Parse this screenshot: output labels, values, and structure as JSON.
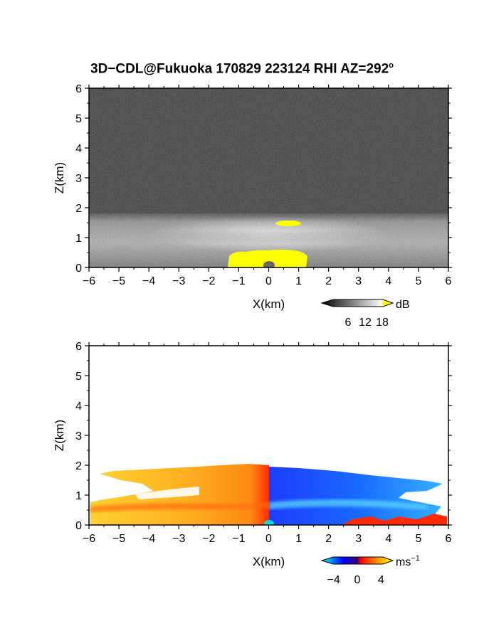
{
  "title": {
    "main": "3D−CDL@Fukuoka 170829 223124 RHI AZ=292",
    "superscript": "o"
  },
  "chart_data": [
    {
      "type": "heatmap",
      "panel": "reflectivity",
      "title": "3D−CDL@Fukuoka 170829 223124 RHI AZ=292°",
      "xlabel": "X(km)",
      "ylabel": "Z(km)",
      "xlim": [
        -6,
        6
      ],
      "ylim": [
        0,
        6
      ],
      "xticks": [
        "−6",
        "−5",
        "−4",
        "−3",
        "−2",
        "−1",
        "0",
        "1",
        "2",
        "3",
        "4",
        "5",
        "6"
      ],
      "yticks": [
        "0",
        "1",
        "2",
        "3",
        "4",
        "5",
        "6"
      ],
      "colorbar": {
        "unit": "dB",
        "ticks": [
          "6",
          "12",
          "18"
        ],
        "range": [
          0,
          20
        ],
        "colors": [
          "#000000",
          "#555555",
          "#aaaaaa",
          "#ffffff",
          "#ffff00"
        ]
      },
      "features": [
        {
          "name": "background",
          "z_range": [
            0,
            6
          ],
          "value_db": 3
        },
        {
          "name": "bright layer",
          "x_range": [
            -6,
            6
          ],
          "z_range": [
            0,
            1.8
          ],
          "value_db": 12
        },
        {
          "name": "peak near z=1.5",
          "x_range": [
            0.3,
            1.1
          ],
          "z_range": [
            1.4,
            1.5
          ],
          "value_db": 18
        },
        {
          "name": "peak near ground",
          "x_range": [
            -1.3,
            1.3
          ],
          "z_range": [
            0,
            0.6
          ],
          "value_db": 18
        }
      ]
    },
    {
      "type": "heatmap",
      "panel": "doppler velocity",
      "xlabel": "X(km)",
      "ylabel": "Z(km)",
      "xlim": [
        -6,
        6
      ],
      "ylim": [
        0,
        6
      ],
      "xticks": [
        "−6",
        "−5",
        "−4",
        "−3",
        "−2",
        "−1",
        "0",
        "1",
        "2",
        "3",
        "4",
        "5",
        "6"
      ],
      "yticks": [
        "0",
        "1",
        "2",
        "3",
        "4",
        "5",
        "6"
      ],
      "colorbar": {
        "unit": "ms",
        "unit_exponent": "−1",
        "ticks": [
          "−4",
          "0",
          "4"
        ],
        "range": [
          -6,
          6
        ],
        "colors": [
          "#00ffff",
          "#0000ff",
          "#ff0000",
          "#ffff00"
        ]
      },
      "features": [
        {
          "name": "positive velocity",
          "x_range": [
            -6,
            0
          ],
          "z_range": [
            0,
            1.9
          ],
          "value_ms": 4
        },
        {
          "name": "negative velocity",
          "x_range": [
            0,
            6
          ],
          "z_range": [
            0,
            1.9
          ],
          "value_ms": -4
        },
        {
          "name": "positive near ground",
          "x_range": [
            2.5,
            6
          ],
          "z_range": [
            0,
            0.3
          ],
          "value_ms": 2
        }
      ]
    }
  ]
}
